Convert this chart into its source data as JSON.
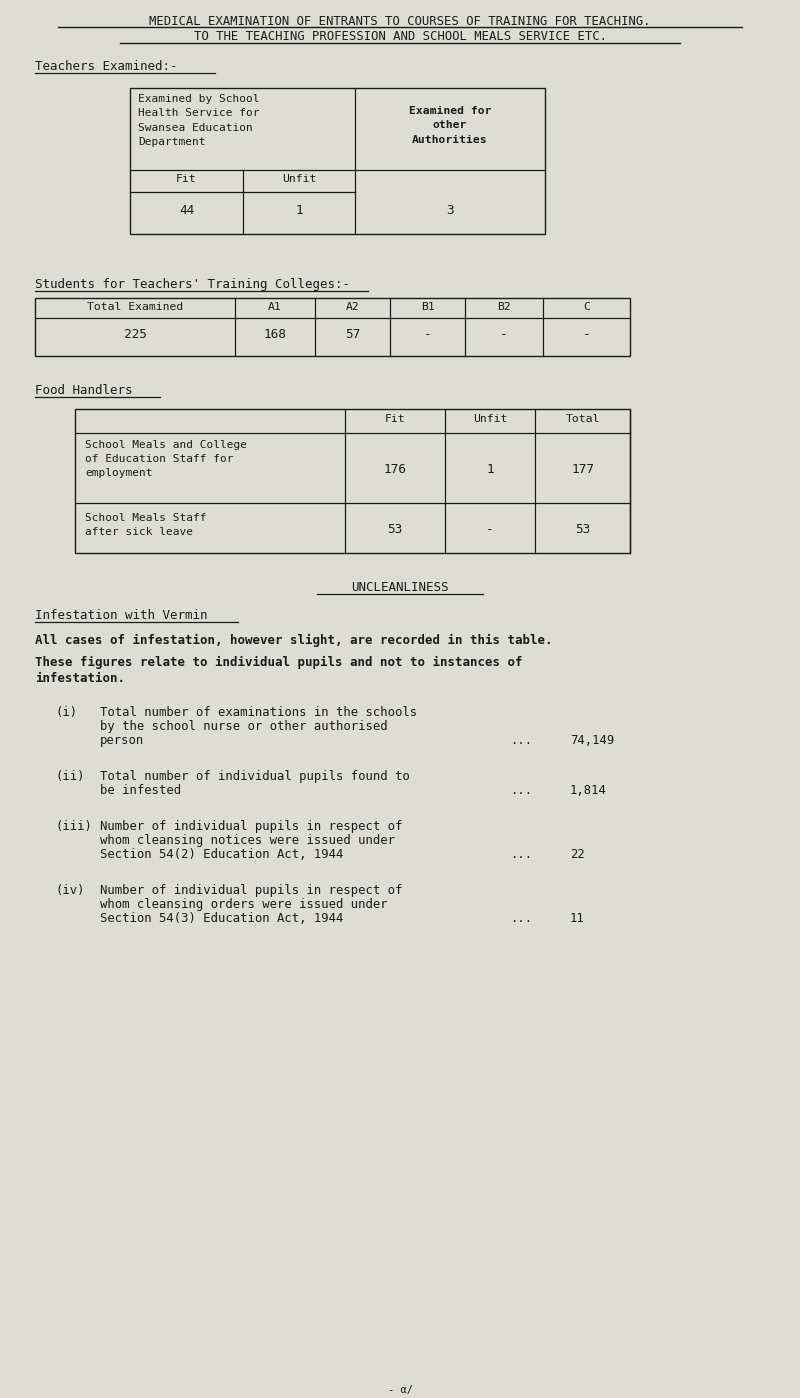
{
  "bg_color": "#deddd5",
  "text_color": "#1a1a1a",
  "title_line1": "MEDICAL EXAMINATION OF ENTRANTS TO COURSES OF TRAINING FOR TEACHING.",
  "title_line2": "TO THE TEACHING PROFESSION AND SCHOOL MEALS SERVICE ETC.",
  "section1_heading": "Teachers Examined:-",
  "table1_data": [
    "44",
    "1",
    "3"
  ],
  "section2_heading": "Students for Teachers' Training Colleges:-",
  "table2_headers": [
    "Total Examined",
    "A1",
    "A2",
    "B1",
    "B2",
    "C"
  ],
  "table2_data": [
    "225",
    "168",
    "57",
    "-",
    "-",
    "-"
  ],
  "section3_heading": "Food Handlers",
  "table3_headers": [
    "",
    "Fit",
    "Unfit",
    "Total"
  ],
  "table3_row1_label": [
    "School Meals and College",
    "of Education Staff for",
    "employment"
  ],
  "table3_row1_data": [
    "176",
    "1",
    "177"
  ],
  "table3_row2_label": [
    "School Meals Staff",
    "after sick leave"
  ],
  "table3_row2_data": [
    "53",
    "-",
    "53"
  ],
  "uncleanliness_heading": "UNCLEANLINESS",
  "infestation_heading": "Infestation with Vermin",
  "infestation_text1": "All cases of infestation, however slight, are recorded in this table.",
  "infestation_text2a": "These figures relate to individual pupils and not to instances of",
  "infestation_text2b": "infestation.",
  "items": [
    {
      "label": "(i)",
      "lines": [
        "Total number of examinations in the schools",
        "by the school nurse or other authorised",
        "person"
      ],
      "value": "74,149"
    },
    {
      "label": "(ii)",
      "lines": [
        "Total number of individual pupils found to",
        "be infested"
      ],
      "value": "1,814"
    },
    {
      "label": "(iii)",
      "lines": [
        "Number of individual pupils in respect of",
        "whom cleansing notices were issued under",
        "Section 54(2) Education Act, 1944"
      ],
      "value": "22"
    },
    {
      "label": "(iv)",
      "lines": [
        "Number of individual pupils in respect of",
        "whom cleansing orders were issued under",
        "Section 54(3) Education Act, 1944"
      ],
      "value": "11"
    }
  ]
}
